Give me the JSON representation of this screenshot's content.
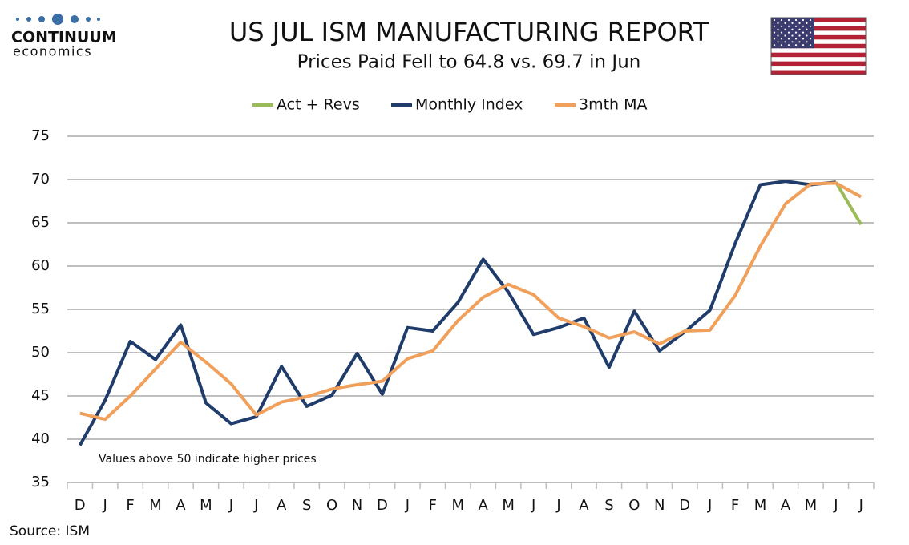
{
  "logo": {
    "name": "CONTINUUM",
    "tagline": "economics"
  },
  "chart_data": {
    "type": "line",
    "title": "US JUL ISM MANUFACTURING REPORT",
    "subtitle": "Prices Paid Fell to 64.8 vs. 69.7 in Jun",
    "annotation": "Values above 50 indicate higher prices",
    "source": "Source: ISM",
    "categories": [
      "D",
      "J",
      "F",
      "M",
      "A",
      "M",
      "J",
      "J",
      "A",
      "S",
      "O",
      "N",
      "D",
      "J",
      "F",
      "M",
      "A",
      "M",
      "J",
      "J",
      "A",
      "S",
      "O",
      "N",
      "D",
      "J",
      "F",
      "M",
      "A",
      "M",
      "J",
      "J"
    ],
    "series": [
      {
        "name": "Act + Revs",
        "color": "#9bbb59",
        "values": [
          null,
          null,
          null,
          null,
          null,
          null,
          null,
          null,
          null,
          null,
          null,
          null,
          null,
          null,
          null,
          null,
          null,
          null,
          null,
          null,
          null,
          null,
          null,
          null,
          null,
          null,
          null,
          null,
          null,
          null,
          69.7,
          64.8
        ]
      },
      {
        "name": "Monthly Index",
        "color": "#1f3c6b",
        "values": [
          39.3,
          44.5,
          51.3,
          49.2,
          53.2,
          44.2,
          41.8,
          42.6,
          48.4,
          43.8,
          45.1,
          49.9,
          45.2,
          52.9,
          52.5,
          55.8,
          60.8,
          57.0,
          52.1,
          52.9,
          54.0,
          48.3,
          54.8,
          50.2,
          52.4,
          54.9,
          62.6,
          69.4,
          69.8,
          69.4,
          69.7,
          null
        ]
      },
      {
        "name": "3mth MA",
        "color": "#f0a05a",
        "values": [
          43.0,
          42.3,
          45.0,
          48.1,
          51.2,
          48.9,
          46.4,
          42.8,
          44.3,
          44.9,
          45.8,
          46.3,
          46.7,
          49.3,
          50.2,
          53.7,
          56.4,
          57.9,
          56.7,
          54.0,
          53.0,
          51.7,
          52.4,
          51.0,
          52.5,
          52.6,
          56.6,
          62.3,
          67.2,
          69.5,
          69.6,
          68.0
        ]
      }
    ],
    "ylim": [
      35,
      75
    ],
    "yticks": [
      35,
      40,
      45,
      50,
      55,
      60,
      65,
      70,
      75
    ],
    "grid": true,
    "legend": "top"
  }
}
